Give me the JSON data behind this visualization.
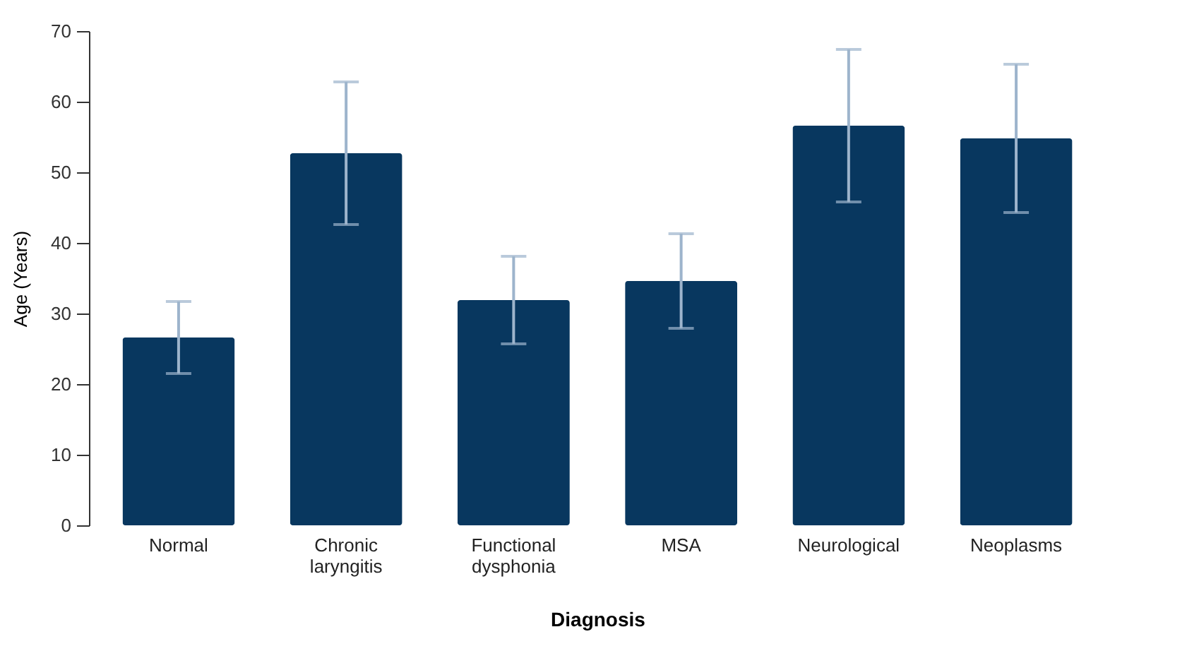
{
  "chart_data": {
    "type": "bar",
    "xlabel": "Diagnosis",
    "ylabel": "Age (Years)",
    "categories": [
      "Normal",
      "Chronic laryngitis",
      "Functional dysphonia",
      "MSA",
      "Neurological",
      "Neoplasms"
    ],
    "values": [
      26.6,
      52.7,
      31.9,
      34.6,
      56.6,
      54.8
    ],
    "errors": [
      5.1,
      10.1,
      6.2,
      6.7,
      10.8,
      10.5
    ],
    "color": "#08375f",
    "ylim": [
      0,
      70
    ],
    "yticks": [
      0,
      10,
      20,
      30,
      40,
      50,
      60,
      70
    ],
    "grid": false
  }
}
